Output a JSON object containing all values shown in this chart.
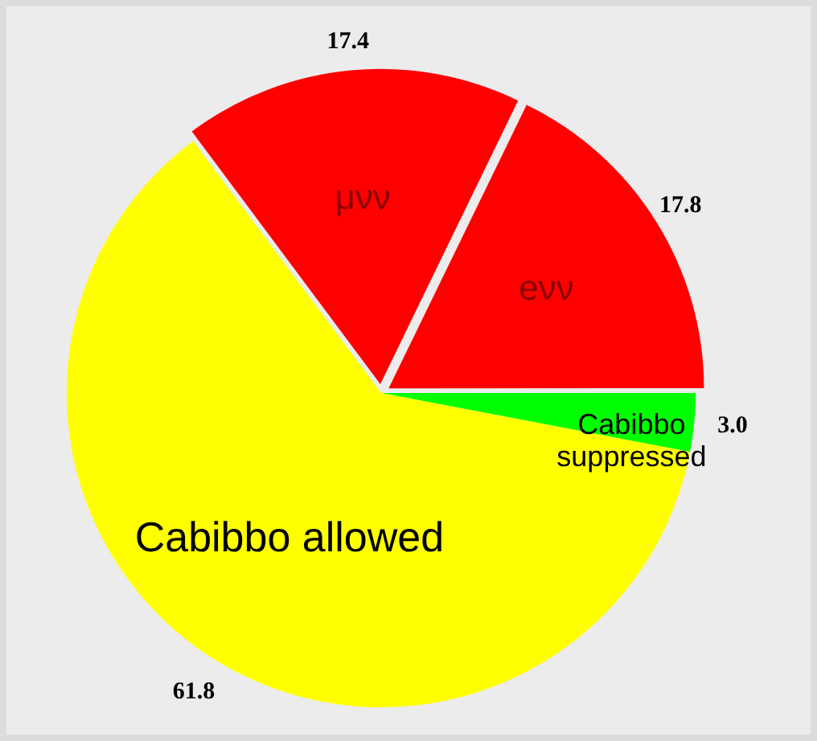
{
  "chart_data": {
    "type": "pie",
    "categories": [
      "Cabibbo suppressed",
      "Cabibbo allowed",
      "μνν",
      "eνν"
    ],
    "values": [
      3.0,
      61.8,
      17.4,
      17.8
    ],
    "colors": [
      "#00ff00",
      "#ffff00",
      "#ff0000",
      "#ff0000"
    ],
    "value_labels": [
      "3.0",
      "61.8",
      "17.4",
      "17.8"
    ]
  }
}
